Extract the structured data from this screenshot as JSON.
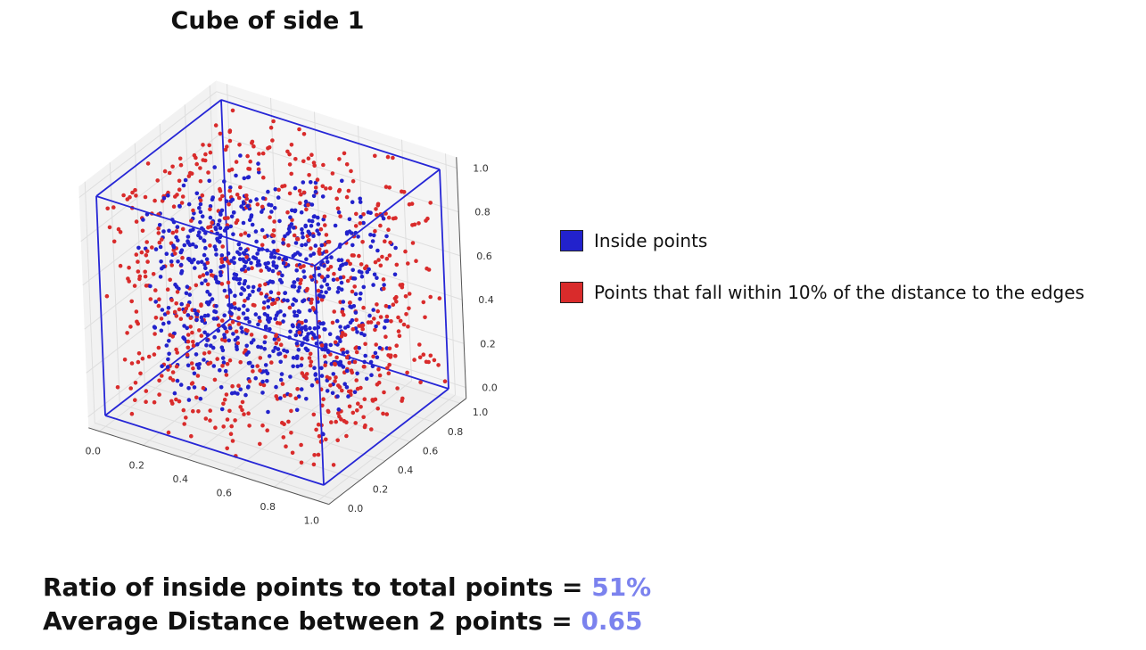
{
  "chart_data": {
    "type": "scatter3d",
    "title": "Cube of side 1",
    "x_ticks": [
      "0.0",
      "0.2",
      "0.4",
      "0.6",
      "0.8",
      "1.0"
    ],
    "y_ticks": [
      "0.0",
      "0.2",
      "0.4",
      "0.6",
      "0.8",
      "1.0"
    ],
    "z_ticks": [
      "0.0",
      "0.2",
      "0.4",
      "0.6",
      "0.8",
      "1.0"
    ],
    "xlim": [
      0,
      1
    ],
    "ylim": [
      0,
      1
    ],
    "zlim": [
      0,
      1
    ],
    "grid": true,
    "legend_position": "right",
    "series": [
      {
        "name": "Inside points",
        "color": "#2222cc"
      },
      {
        "name": "Points that fall within 10% of the distance to the edges",
        "color": "#d92b2b"
      }
    ]
  },
  "stats": {
    "ratio_label": "Ratio of inside points to total points = ",
    "ratio_value": "51%",
    "distance_label": "Average Distance between 2 points = ",
    "distance_value": "0.65"
  }
}
